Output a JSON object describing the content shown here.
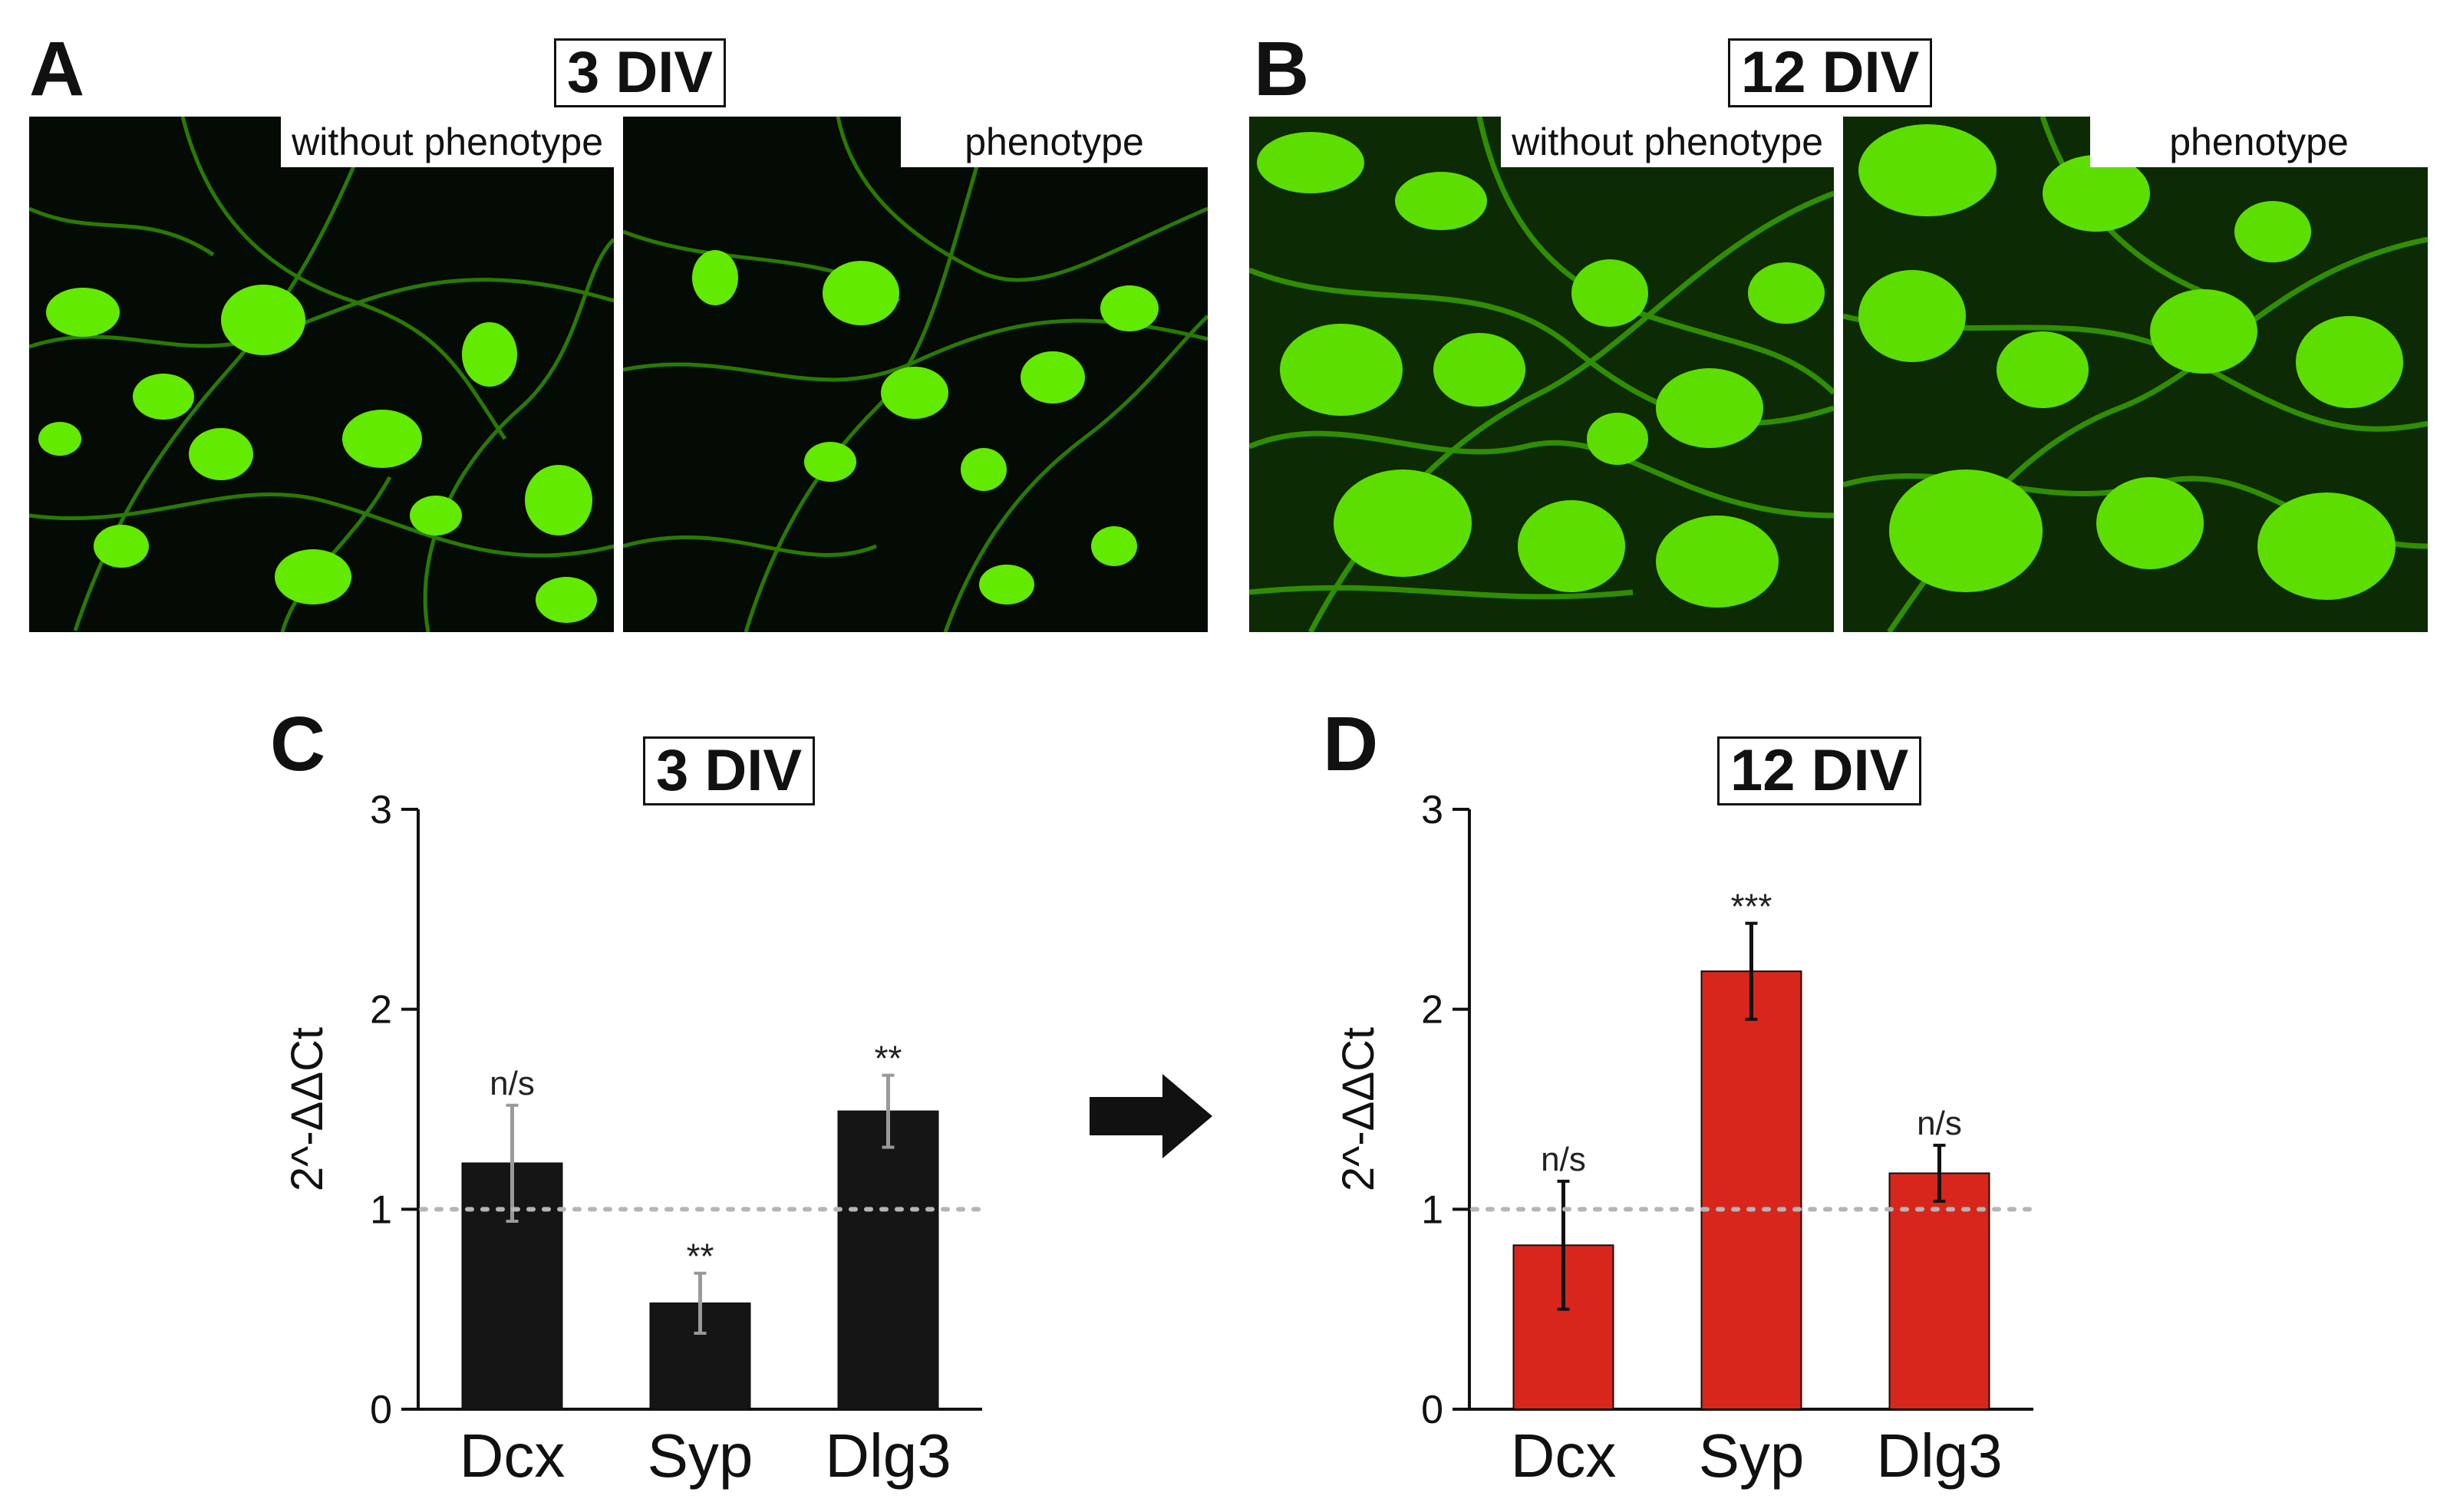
{
  "panels": {
    "a": {
      "letter": "A",
      "title": "3 DIV",
      "label_left": "without phenotype",
      "label_right": "phenotype"
    },
    "b": {
      "letter": "B",
      "title": "12 DIV",
      "label_left": "without phenotype",
      "label_right": "phenotype"
    },
    "c": {
      "letter": "C",
      "title": "3 DIV"
    },
    "d": {
      "letter": "D",
      "title": "12 DIV"
    }
  },
  "colors": {
    "fluorescence": "#4fe000",
    "chart_c_bar": "#151515",
    "chart_c_error": "#9a9a9a",
    "chart_d_bar": "#d9261c",
    "chart_d_error": "#111111",
    "reference_line": "#b5b5b5"
  },
  "chart_data": [
    {
      "panel": "C",
      "type": "bar",
      "title": "3 DIV",
      "ylabel": "2^-ΔΔCt",
      "xlabel": "",
      "categories": [
        "Dcx",
        "Syp",
        "Dlg3"
      ],
      "values": [
        1.23,
        0.53,
        1.49
      ],
      "errors": [
        0.29,
        0.15,
        0.18
      ],
      "annotations": [
        "n/s",
        "**",
        "**"
      ],
      "ylim": [
        0,
        3
      ],
      "yticks": [
        0,
        1,
        2,
        3
      ],
      "reference_line": 1,
      "grid": false
    },
    {
      "panel": "D",
      "type": "bar",
      "title": "12 DIV",
      "ylabel": "2^-ΔΔCt",
      "xlabel": "",
      "categories": [
        "Dcx",
        "Syp",
        "Dlg3"
      ],
      "values": [
        0.82,
        2.19,
        1.18
      ],
      "errors": [
        0.32,
        0.24,
        0.14
      ],
      "annotations": [
        "n/s",
        "***",
        "n/s"
      ],
      "ylim": [
        0,
        3
      ],
      "yticks": [
        0,
        1,
        2,
        3
      ],
      "reference_line": 1,
      "grid": false
    }
  ]
}
